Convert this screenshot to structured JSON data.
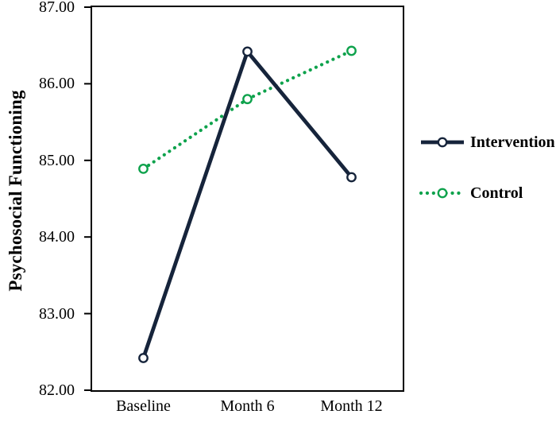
{
  "chart_data": {
    "type": "line",
    "title": "",
    "xlabel": "",
    "ylabel": "Psychosocial Functioning",
    "categories": [
      "Baseline",
      "Month 6",
      "Month 12"
    ],
    "series": [
      {
        "name": "Intervention",
        "values": [
          82.42,
          86.42,
          84.78
        ],
        "color": "#16243B",
        "line_style": "solid",
        "marker": "open-circle"
      },
      {
        "name": "Control",
        "values": [
          84.89,
          85.8,
          86.43
        ],
        "color": "#0EA24C",
        "line_style": "dotted",
        "marker": "open-circle"
      }
    ],
    "ylim": [
      82,
      87
    ],
    "ytick_values": [
      82,
      83,
      84,
      85,
      86,
      87
    ],
    "ytick_labels": [
      "82.00",
      "83.00",
      "84.00",
      "85.00",
      "86.00",
      "87.00"
    ],
    "grid": false,
    "plot_border": true,
    "legend_position": "right",
    "axis_color": "#000000",
    "background": "#FFFFFF"
  }
}
